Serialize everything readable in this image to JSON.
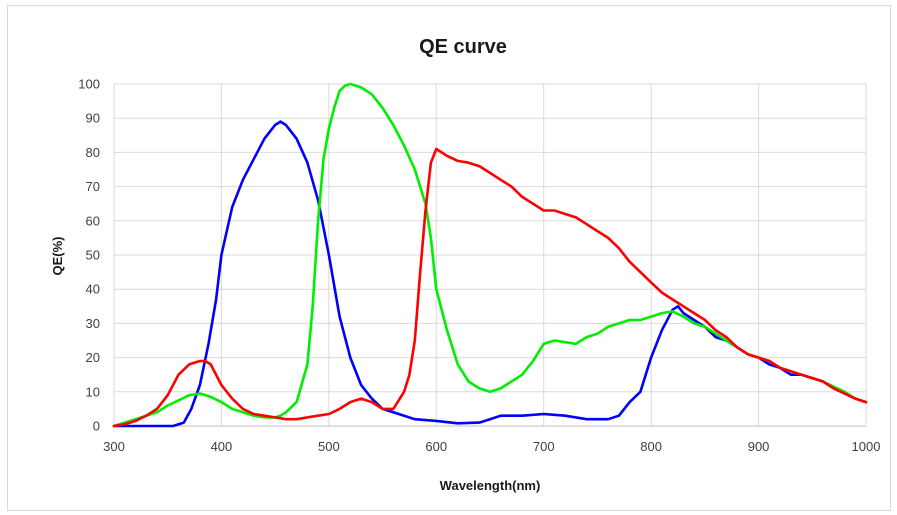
{
  "chart_data": {
    "type": "line",
    "title": "QE curve",
    "xlabel": "Wavelength(nm)",
    "ylabel": "QE(%)",
    "xlim": [
      300,
      1000
    ],
    "ylim": [
      0,
      100
    ],
    "xticks": [
      300,
      400,
      500,
      600,
      700,
      800,
      900,
      1000
    ],
    "yticks": [
      0,
      10,
      20,
      30,
      40,
      50,
      60,
      70,
      80,
      90,
      100
    ],
    "grid": true,
    "legend": "none",
    "series": [
      {
        "color": "#0000ff",
        "points": [
          [
            300,
            0
          ],
          [
            320,
            0
          ],
          [
            340,
            0
          ],
          [
            355,
            0
          ],
          [
            365,
            1
          ],
          [
            372,
            5
          ],
          [
            380,
            12
          ],
          [
            388,
            24
          ],
          [
            395,
            37
          ],
          [
            400,
            50
          ],
          [
            410,
            64
          ],
          [
            420,
            72
          ],
          [
            430,
            78
          ],
          [
            440,
            84
          ],
          [
            450,
            88
          ],
          [
            455,
            89
          ],
          [
            460,
            88
          ],
          [
            470,
            84
          ],
          [
            480,
            77
          ],
          [
            490,
            66
          ],
          [
            500,
            50
          ],
          [
            510,
            32
          ],
          [
            520,
            20
          ],
          [
            530,
            12
          ],
          [
            540,
            8
          ],
          [
            550,
            5
          ],
          [
            560,
            4
          ],
          [
            570,
            3
          ],
          [
            580,
            2
          ],
          [
            600,
            1.5
          ],
          [
            620,
            0.8
          ],
          [
            640,
            1
          ],
          [
            650,
            2
          ],
          [
            660,
            3
          ],
          [
            680,
            3
          ],
          [
            700,
            3.5
          ],
          [
            720,
            3
          ],
          [
            740,
            2
          ],
          [
            760,
            2
          ],
          [
            770,
            3
          ],
          [
            780,
            7
          ],
          [
            790,
            10
          ],
          [
            800,
            20
          ],
          [
            810,
            28
          ],
          [
            820,
            34
          ],
          [
            825,
            35
          ],
          [
            830,
            33
          ],
          [
            840,
            31
          ],
          [
            850,
            29
          ],
          [
            860,
            26
          ],
          [
            870,
            25
          ],
          [
            880,
            23
          ],
          [
            890,
            21
          ],
          [
            900,
            20
          ],
          [
            910,
            18
          ],
          [
            920,
            17
          ],
          [
            930,
            15
          ],
          [
            940,
            15
          ],
          [
            950,
            14
          ],
          [
            960,
            13
          ],
          [
            970,
            11
          ],
          [
            980,
            9.5
          ],
          [
            990,
            8
          ],
          [
            1000,
            7
          ]
        ]
      },
      {
        "color": "#00ee00",
        "points": [
          [
            300,
            0
          ],
          [
            310,
            1
          ],
          [
            320,
            2
          ],
          [
            340,
            4
          ],
          [
            350,
            6
          ],
          [
            360,
            7.5
          ],
          [
            370,
            9
          ],
          [
            380,
            9.5
          ],
          [
            390,
            8.5
          ],
          [
            400,
            7
          ],
          [
            410,
            5
          ],
          [
            420,
            4
          ],
          [
            430,
            3
          ],
          [
            440,
            2.5
          ],
          [
            450,
            2.5
          ],
          [
            455,
            3
          ],
          [
            460,
            4
          ],
          [
            470,
            7
          ],
          [
            480,
            18
          ],
          [
            485,
            35
          ],
          [
            490,
            60
          ],
          [
            495,
            78
          ],
          [
            500,
            87
          ],
          [
            505,
            93
          ],
          [
            510,
            98
          ],
          [
            515,
            99.5
          ],
          [
            520,
            100
          ],
          [
            530,
            99
          ],
          [
            540,
            97
          ],
          [
            550,
            93
          ],
          [
            560,
            88
          ],
          [
            570,
            82
          ],
          [
            580,
            75
          ],
          [
            590,
            65
          ],
          [
            595,
            55
          ],
          [
            600,
            40
          ],
          [
            610,
            28
          ],
          [
            620,
            18
          ],
          [
            630,
            13
          ],
          [
            640,
            11
          ],
          [
            650,
            10
          ],
          [
            660,
            11
          ],
          [
            670,
            13
          ],
          [
            680,
            15
          ],
          [
            690,
            19
          ],
          [
            700,
            24
          ],
          [
            710,
            25
          ],
          [
            720,
            24.5
          ],
          [
            730,
            24
          ],
          [
            740,
            26
          ],
          [
            750,
            27
          ],
          [
            760,
            29
          ],
          [
            770,
            30
          ],
          [
            780,
            31
          ],
          [
            790,
            31
          ],
          [
            800,
            32
          ],
          [
            810,
            33
          ],
          [
            820,
            33.5
          ],
          [
            830,
            32
          ],
          [
            840,
            30
          ],
          [
            850,
            29
          ],
          [
            860,
            27
          ],
          [
            870,
            25
          ],
          [
            880,
            23
          ],
          [
            890,
            21
          ],
          [
            900,
            20
          ],
          [
            910,
            19
          ],
          [
            920,
            17
          ],
          [
            930,
            16
          ],
          [
            940,
            15
          ],
          [
            950,
            14
          ],
          [
            960,
            13
          ],
          [
            970,
            11.5
          ],
          [
            980,
            10
          ],
          [
            990,
            8
          ],
          [
            1000,
            7
          ]
        ]
      },
      {
        "color": "#ff0000",
        "points": [
          [
            300,
            0
          ],
          [
            310,
            0.5
          ],
          [
            320,
            1.5
          ],
          [
            330,
            3
          ],
          [
            340,
            5
          ],
          [
            350,
            9
          ],
          [
            360,
            15
          ],
          [
            370,
            18
          ],
          [
            380,
            19
          ],
          [
            385,
            19
          ],
          [
            390,
            18
          ],
          [
            400,
            12
          ],
          [
            410,
            8
          ],
          [
            420,
            5
          ],
          [
            430,
            3.5
          ],
          [
            440,
            3
          ],
          [
            450,
            2.5
          ],
          [
            460,
            2
          ],
          [
            470,
            2
          ],
          [
            480,
            2.5
          ],
          [
            490,
            3
          ],
          [
            500,
            3.5
          ],
          [
            510,
            5
          ],
          [
            520,
            7
          ],
          [
            530,
            8
          ],
          [
            540,
            7
          ],
          [
            550,
            5
          ],
          [
            560,
            5
          ],
          [
            570,
            10
          ],
          [
            575,
            15
          ],
          [
            580,
            25
          ],
          [
            585,
            45
          ],
          [
            590,
            63
          ],
          [
            595,
            77
          ],
          [
            600,
            81
          ],
          [
            610,
            79
          ],
          [
            620,
            77.5
          ],
          [
            630,
            77
          ],
          [
            640,
            76
          ],
          [
            650,
            74
          ],
          [
            660,
            72
          ],
          [
            670,
            70
          ],
          [
            680,
            67
          ],
          [
            690,
            65
          ],
          [
            700,
            63
          ],
          [
            710,
            63
          ],
          [
            720,
            62
          ],
          [
            730,
            61
          ],
          [
            740,
            59
          ],
          [
            750,
            57
          ],
          [
            760,
            55
          ],
          [
            770,
            52
          ],
          [
            780,
            48
          ],
          [
            790,
            45
          ],
          [
            800,
            42
          ],
          [
            810,
            39
          ],
          [
            820,
            37
          ],
          [
            830,
            35
          ],
          [
            840,
            33
          ],
          [
            850,
            31
          ],
          [
            860,
            28
          ],
          [
            870,
            26
          ],
          [
            880,
            23
          ],
          [
            890,
            21
          ],
          [
            900,
            20
          ],
          [
            910,
            19
          ],
          [
            920,
            17
          ],
          [
            930,
            16
          ],
          [
            940,
            15
          ],
          [
            950,
            14
          ],
          [
            960,
            13
          ],
          [
            970,
            11
          ],
          [
            980,
            9.5
          ],
          [
            990,
            8
          ],
          [
            1000,
            7
          ]
        ]
      }
    ]
  }
}
